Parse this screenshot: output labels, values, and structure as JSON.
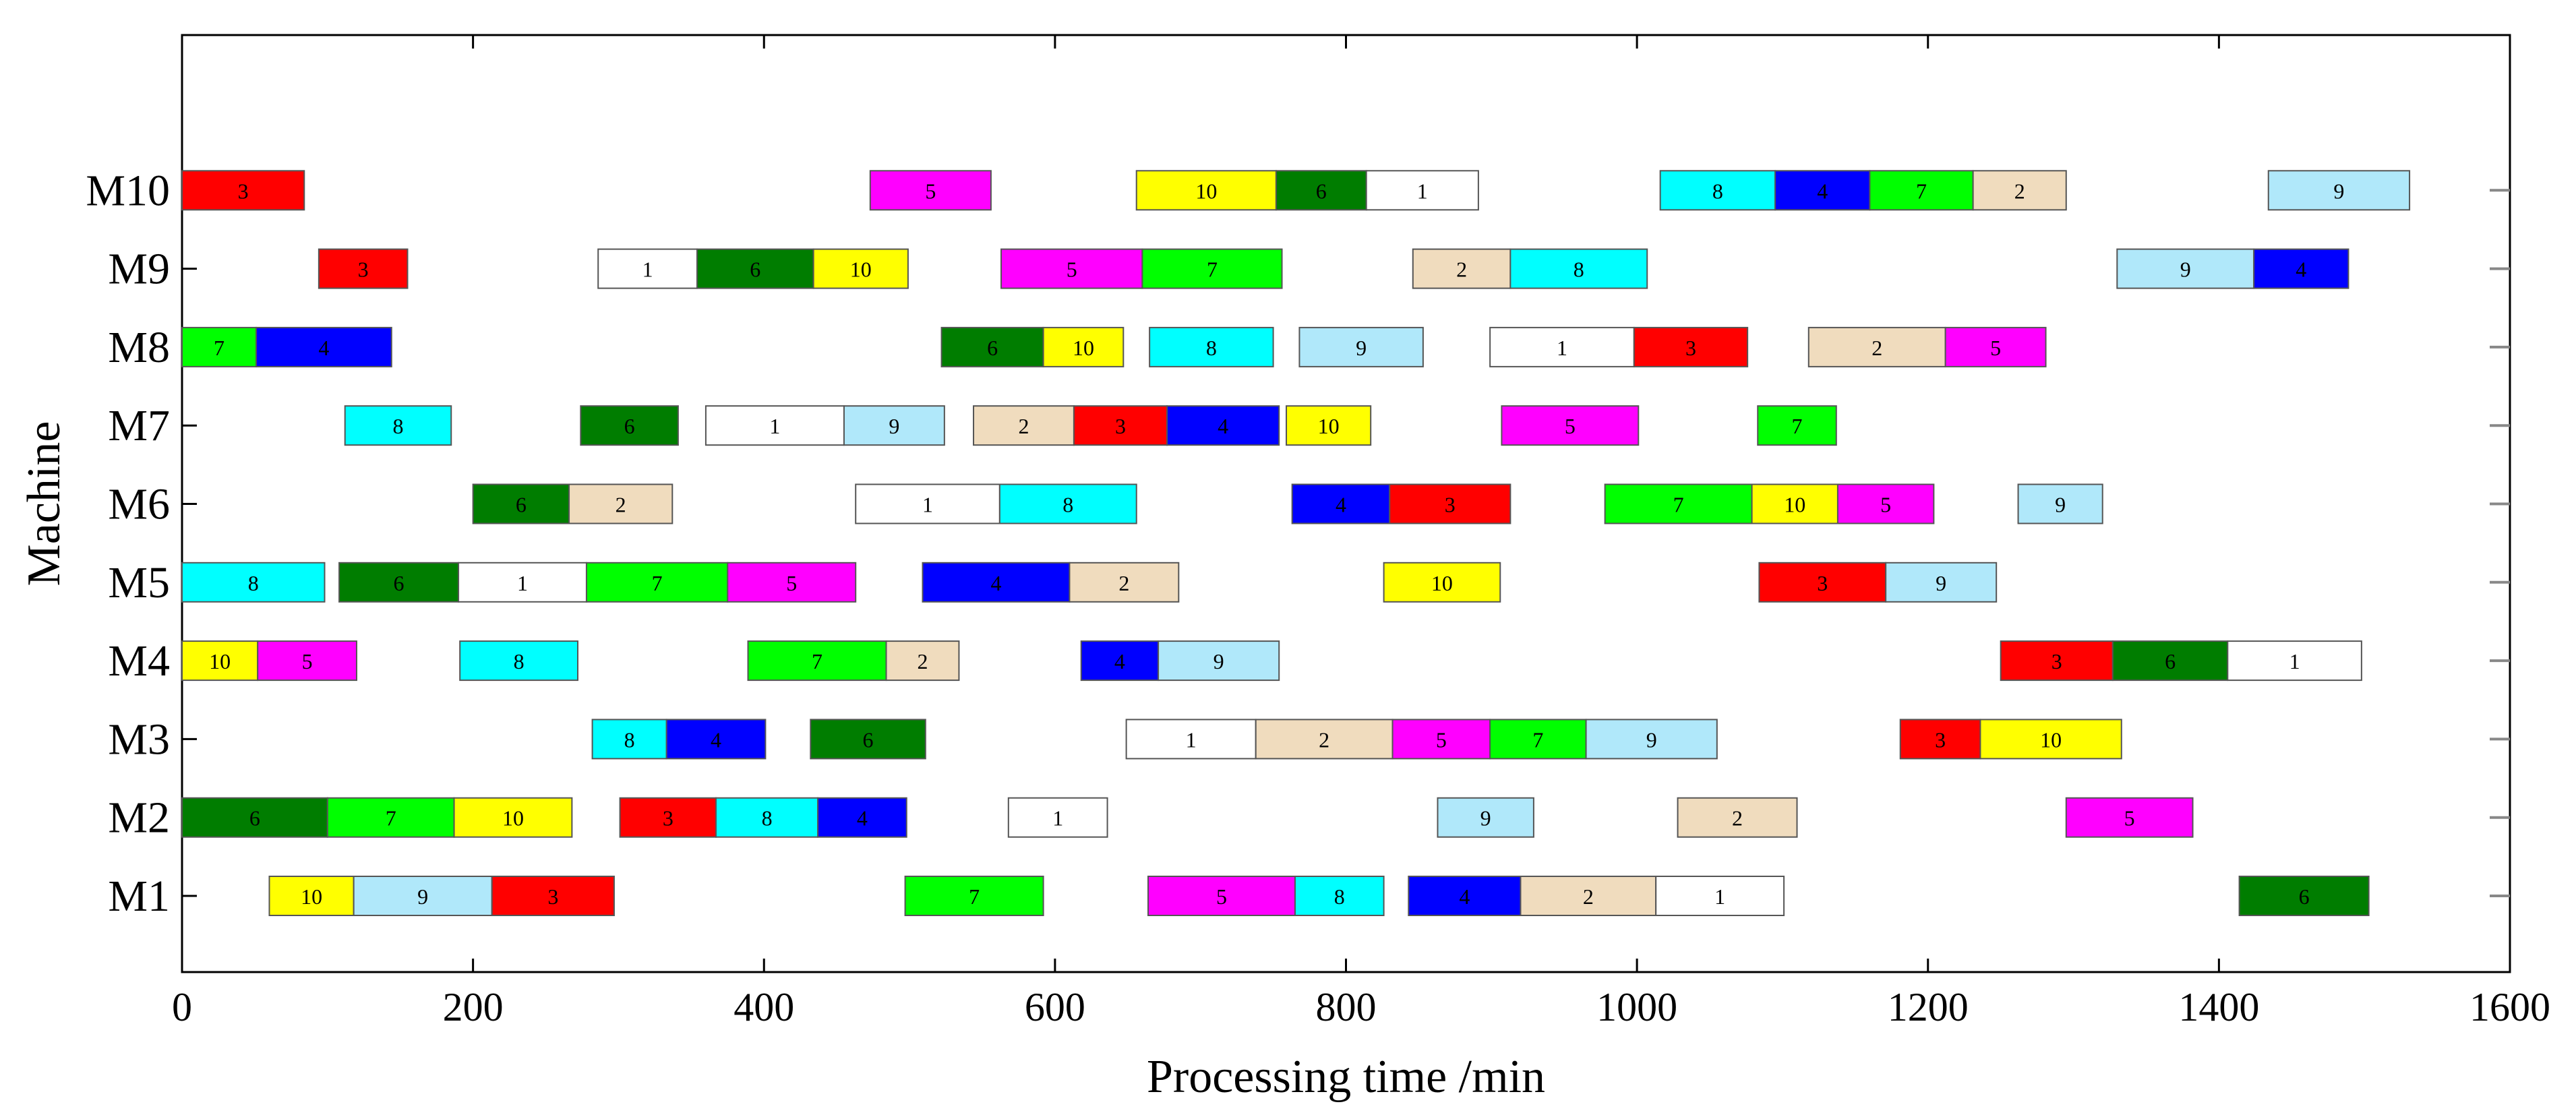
{
  "chart_data": {
    "type": "gantt",
    "title": "",
    "xlabel": "Processing time /min",
    "ylabel": "Machine",
    "xlim": [
      0,
      1600
    ],
    "xticks": [
      0,
      200,
      400,
      600,
      800,
      1000,
      1200,
      1400,
      1600
    ],
    "machines": [
      "M1",
      "M2",
      "M3",
      "M4",
      "M5",
      "M6",
      "M7",
      "M8",
      "M9",
      "M10"
    ],
    "job_colors": {
      "1": "#ffffff",
      "2": "#f0dcbe",
      "3": "#ff0000",
      "4": "#0000ff",
      "5": "#ff00ff",
      "6": "#007d00",
      "7": "#00ff00",
      "8": "#00ffff",
      "9": "#b0e8fa",
      "10": "#ffff00"
    },
    "operations": [
      {
        "machine": "M1",
        "job": "10",
        "start": 60,
        "end": 118
      },
      {
        "machine": "M1",
        "job": "9",
        "start": 118,
        "end": 213
      },
      {
        "machine": "M1",
        "job": "3",
        "start": 213,
        "end": 297
      },
      {
        "machine": "M1",
        "job": "7",
        "start": 497,
        "end": 592
      },
      {
        "machine": "M1",
        "job": "5",
        "start": 664,
        "end": 765
      },
      {
        "machine": "M1",
        "job": "8",
        "start": 765,
        "end": 826
      },
      {
        "machine": "M1",
        "job": "4",
        "start": 843,
        "end": 920
      },
      {
        "machine": "M1",
        "job": "2",
        "start": 920,
        "end": 1013
      },
      {
        "machine": "M1",
        "job": "1",
        "start": 1013,
        "end": 1101
      },
      {
        "machine": "M1",
        "job": "6",
        "start": 1414,
        "end": 1503
      },
      {
        "machine": "M2",
        "job": "6",
        "start": 0,
        "end": 100
      },
      {
        "machine": "M2",
        "job": "7",
        "start": 100,
        "end": 187
      },
      {
        "machine": "M2",
        "job": "10",
        "start": 187,
        "end": 268
      },
      {
        "machine": "M2",
        "job": "3",
        "start": 301,
        "end": 367
      },
      {
        "machine": "M2",
        "job": "8",
        "start": 367,
        "end": 437
      },
      {
        "machine": "M2",
        "job": "4",
        "start": 437,
        "end": 498
      },
      {
        "machine": "M2",
        "job": "1",
        "start": 568,
        "end": 636
      },
      {
        "machine": "M2",
        "job": "9",
        "start": 863,
        "end": 929
      },
      {
        "machine": "M2",
        "job": "2",
        "start": 1028,
        "end": 1110
      },
      {
        "machine": "M2",
        "job": "5",
        "start": 1295,
        "end": 1382
      },
      {
        "machine": "M3",
        "job": "8",
        "start": 282,
        "end": 333
      },
      {
        "machine": "M3",
        "job": "4",
        "start": 333,
        "end": 401
      },
      {
        "machine": "M3",
        "job": "6",
        "start": 432,
        "end": 511
      },
      {
        "machine": "M3",
        "job": "1",
        "start": 649,
        "end": 738
      },
      {
        "machine": "M3",
        "job": "2",
        "start": 738,
        "end": 832
      },
      {
        "machine": "M3",
        "job": "5",
        "start": 832,
        "end": 899
      },
      {
        "machine": "M3",
        "job": "7",
        "start": 899,
        "end": 965
      },
      {
        "machine": "M3",
        "job": "9",
        "start": 965,
        "end": 1055
      },
      {
        "machine": "M3",
        "job": "3",
        "start": 1181,
        "end": 1236
      },
      {
        "machine": "M3",
        "job": "10",
        "start": 1236,
        "end": 1333
      },
      {
        "machine": "M4",
        "job": "10",
        "start": 0,
        "end": 52
      },
      {
        "machine": "M4",
        "job": "5",
        "start": 52,
        "end": 120
      },
      {
        "machine": "M4",
        "job": "8",
        "start": 191,
        "end": 272
      },
      {
        "machine": "M4",
        "job": "7",
        "start": 389,
        "end": 484
      },
      {
        "machine": "M4",
        "job": "2",
        "start": 484,
        "end": 534
      },
      {
        "machine": "M4",
        "job": "4",
        "start": 618,
        "end": 671
      },
      {
        "machine": "M4",
        "job": "9",
        "start": 671,
        "end": 754
      },
      {
        "machine": "M4",
        "job": "3",
        "start": 1250,
        "end": 1327
      },
      {
        "machine": "M4",
        "job": "6",
        "start": 1327,
        "end": 1406
      },
      {
        "machine": "M4",
        "job": "1",
        "start": 1406,
        "end": 1498
      },
      {
        "machine": "M5",
        "job": "8",
        "start": 0,
        "end": 98
      },
      {
        "machine": "M5",
        "job": "6",
        "start": 108,
        "end": 190
      },
      {
        "machine": "M5",
        "job": "1",
        "start": 190,
        "end": 278
      },
      {
        "machine": "M5",
        "job": "7",
        "start": 278,
        "end": 375
      },
      {
        "machine": "M5",
        "job": "5",
        "start": 375,
        "end": 463
      },
      {
        "machine": "M5",
        "job": "4",
        "start": 509,
        "end": 610
      },
      {
        "machine": "M5",
        "job": "2",
        "start": 610,
        "end": 685
      },
      {
        "machine": "M5",
        "job": "10",
        "start": 826,
        "end": 906
      },
      {
        "machine": "M5",
        "job": "3",
        "start": 1084,
        "end": 1171
      },
      {
        "machine": "M5",
        "job": "9",
        "start": 1171,
        "end": 1247
      },
      {
        "machine": "M6",
        "job": "6",
        "start": 200,
        "end": 266
      },
      {
        "machine": "M6",
        "job": "2",
        "start": 266,
        "end": 337
      },
      {
        "machine": "M6",
        "job": "1",
        "start": 463,
        "end": 562
      },
      {
        "machine": "M6",
        "job": "8",
        "start": 562,
        "end": 656
      },
      {
        "machine": "M6",
        "job": "4",
        "start": 763,
        "end": 830
      },
      {
        "machine": "M6",
        "job": "3",
        "start": 830,
        "end": 913
      },
      {
        "machine": "M6",
        "job": "7",
        "start": 978,
        "end": 1079
      },
      {
        "machine": "M6",
        "job": "10",
        "start": 1079,
        "end": 1138
      },
      {
        "machine": "M6",
        "job": "5",
        "start": 1138,
        "end": 1204
      },
      {
        "machine": "M6",
        "job": "9",
        "start": 1262,
        "end": 1320
      },
      {
        "machine": "M7",
        "job": "8",
        "start": 112,
        "end": 185
      },
      {
        "machine": "M7",
        "job": "6",
        "start": 274,
        "end": 341
      },
      {
        "machine": "M7",
        "job": "1",
        "start": 360,
        "end": 455
      },
      {
        "machine": "M7",
        "job": "9",
        "start": 455,
        "end": 524
      },
      {
        "machine": "M7",
        "job": "2",
        "start": 544,
        "end": 613
      },
      {
        "machine": "M7",
        "job": "3",
        "start": 613,
        "end": 677
      },
      {
        "machine": "M7",
        "job": "4",
        "start": 677,
        "end": 754
      },
      {
        "machine": "M7",
        "job": "10",
        "start": 759,
        "end": 817
      },
      {
        "machine": "M7",
        "job": "5",
        "start": 907,
        "end": 1001
      },
      {
        "machine": "M7",
        "job": "7",
        "start": 1083,
        "end": 1137
      },
      {
        "machine": "M8",
        "job": "7",
        "start": 0,
        "end": 51
      },
      {
        "machine": "M8",
        "job": "4",
        "start": 51,
        "end": 144
      },
      {
        "machine": "M8",
        "job": "6",
        "start": 522,
        "end": 592
      },
      {
        "machine": "M8",
        "job": "10",
        "start": 592,
        "end": 647
      },
      {
        "machine": "M8",
        "job": "8",
        "start": 665,
        "end": 750
      },
      {
        "machine": "M8",
        "job": "9",
        "start": 768,
        "end": 853
      },
      {
        "machine": "M8",
        "job": "1",
        "start": 899,
        "end": 998
      },
      {
        "machine": "M8",
        "job": "3",
        "start": 998,
        "end": 1076
      },
      {
        "machine": "M8",
        "job": "2",
        "start": 1118,
        "end": 1212
      },
      {
        "machine": "M8",
        "job": "5",
        "start": 1212,
        "end": 1281
      },
      {
        "machine": "M9",
        "job": "3",
        "start": 94,
        "end": 155
      },
      {
        "machine": "M9",
        "job": "1",
        "start": 286,
        "end": 354
      },
      {
        "machine": "M9",
        "job": "6",
        "start": 354,
        "end": 434
      },
      {
        "machine": "M9",
        "job": "10",
        "start": 434,
        "end": 499
      },
      {
        "machine": "M9",
        "job": "5",
        "start": 563,
        "end": 660
      },
      {
        "machine": "M9",
        "job": "7",
        "start": 660,
        "end": 756
      },
      {
        "machine": "M9",
        "job": "2",
        "start": 846,
        "end": 913
      },
      {
        "machine": "M9",
        "job": "8",
        "start": 913,
        "end": 1007
      },
      {
        "machine": "M9",
        "job": "9",
        "start": 1330,
        "end": 1424
      },
      {
        "machine": "M9",
        "job": "4",
        "start": 1424,
        "end": 1489
      },
      {
        "machine": "M10",
        "job": "3",
        "start": 0,
        "end": 84
      },
      {
        "machine": "M10",
        "job": "5",
        "start": 473,
        "end": 556
      },
      {
        "machine": "M10",
        "job": "10",
        "start": 656,
        "end": 752
      },
      {
        "machine": "M10",
        "job": "6",
        "start": 752,
        "end": 814
      },
      {
        "machine": "M10",
        "job": "1",
        "start": 814,
        "end": 891
      },
      {
        "machine": "M10",
        "job": "8",
        "start": 1016,
        "end": 1095
      },
      {
        "machine": "M10",
        "job": "4",
        "start": 1095,
        "end": 1160
      },
      {
        "machine": "M10",
        "job": "7",
        "start": 1160,
        "end": 1231
      },
      {
        "machine": "M10",
        "job": "2",
        "start": 1231,
        "end": 1295
      },
      {
        "machine": "M10",
        "job": "9",
        "start": 1434,
        "end": 1531
      }
    ]
  }
}
